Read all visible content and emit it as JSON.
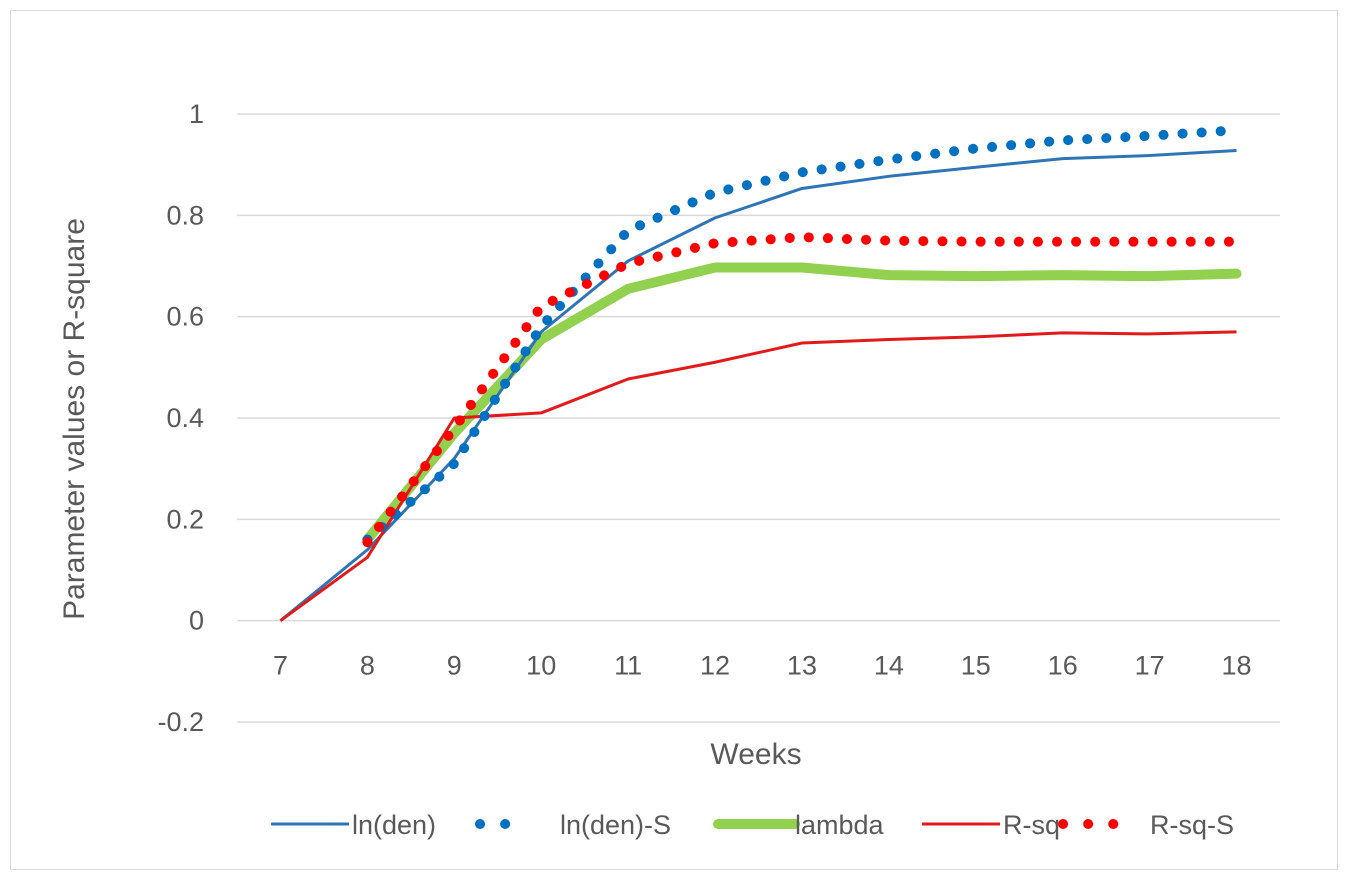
{
  "chart_data": {
    "type": "line",
    "xlabel": "Weeks",
    "ylabel": "Parameter values or R-square",
    "x": [
      7,
      8,
      9,
      10,
      11,
      12,
      13,
      14,
      15,
      16,
      17,
      18
    ],
    "ylim": [
      -0.2,
      1
    ],
    "yticks": [
      -0.2,
      0,
      0.2,
      0.4,
      0.6,
      0.8,
      1
    ],
    "ytick_labels": [
      "-0.2",
      "0",
      "0.2",
      "0.4",
      "0.6",
      "0.8",
      "1"
    ],
    "xtick_labels": [
      "7",
      "8",
      "9",
      "10",
      "11",
      "12",
      "13",
      "14",
      "15",
      "16",
      "17",
      "18"
    ],
    "grid": true,
    "legend_position": "bottom",
    "series": [
      {
        "name": "ln(den)",
        "style": "solid-thin",
        "color": "#2e75b6",
        "x": [
          7,
          8,
          9,
          10,
          11,
          12,
          13,
          14,
          15,
          16,
          17,
          18
        ],
        "values": [
          0,
          0.14,
          0.32,
          0.57,
          0.71,
          0.795,
          0.853,
          0.877,
          0.895,
          0.912,
          0.918,
          0.928
        ]
      },
      {
        "name": "ln(den)-S",
        "style": "dotted",
        "color": "#0070c0",
        "x": [
          8,
          9,
          10,
          11,
          12,
          13,
          14,
          15,
          16,
          17,
          18
        ],
        "values": [
          0.16,
          0.31,
          0.58,
          0.77,
          0.845,
          0.885,
          0.91,
          0.932,
          0.948,
          0.957,
          0.968
        ]
      },
      {
        "name": "lambda",
        "style": "solid-thick",
        "color": "#92d050",
        "x": [
          8,
          9,
          10,
          11,
          12,
          13,
          14,
          15,
          16,
          17,
          18
        ],
        "values": [
          0.16,
          0.37,
          0.555,
          0.655,
          0.697,
          0.697,
          0.682,
          0.68,
          0.682,
          0.68,
          0.685
        ]
      },
      {
        "name": "R-sq",
        "style": "solid-thin",
        "color": "#e31a1c",
        "x": [
          7,
          8,
          9,
          10,
          11,
          12,
          13,
          14,
          15,
          16,
          17,
          18
        ],
        "values": [
          0,
          0.125,
          0.4,
          0.41,
          0.477,
          0.51,
          0.548,
          0.555,
          0.56,
          0.568,
          0.566,
          0.57
        ]
      },
      {
        "name": "R-sq-S",
        "style": "dotted",
        "color": "#ff0000",
        "x": [
          8,
          9,
          10,
          11,
          12,
          13,
          14,
          15,
          16,
          17,
          18
        ],
        "values": [
          0.155,
          0.38,
          0.62,
          0.705,
          0.745,
          0.757,
          0.75,
          0.748,
          0.748,
          0.748,
          0.748
        ]
      }
    ]
  }
}
